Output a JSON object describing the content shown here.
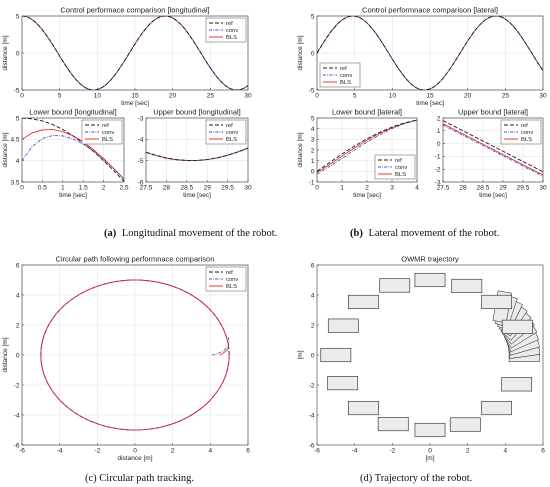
{
  "colors": {
    "ref": "#1a1a1a",
    "conv": "#4b4bd6",
    "bls": "#e8212b",
    "box_fill": "#ebebeb",
    "grid": "#dedede"
  },
  "legend_labels": [
    "ref",
    "conv",
    "BLS"
  ],
  "chart_data": [
    {
      "id": "a-top",
      "type": "line",
      "title": "Control performace comparison [longitudinal]",
      "xlabel": "time [sec]",
      "ylabel": "distance [m]",
      "xlim": [
        0,
        30
      ],
      "ylim": [
        -5,
        5
      ],
      "xticks": [
        0,
        5,
        10,
        15,
        20,
        25,
        30
      ],
      "yticks": [
        -5,
        0,
        5
      ],
      "grid": true,
      "legend": "top-right",
      "series": [
        {
          "name": "ref",
          "function": "5*cos(0.3307*t)",
          "range": [
            0,
            30
          ]
        },
        {
          "name": "conv",
          "function": "5*cos(0.3307*t)",
          "range": [
            0,
            30
          ]
        },
        {
          "name": "BLS",
          "function": "5*cos(0.3307*t)",
          "range": [
            0,
            30
          ]
        }
      ]
    },
    {
      "id": "a-low",
      "type": "line",
      "title": "Lower bound [longitudinal]",
      "xlabel": "time [sec]",
      "ylabel": "distance [m]",
      "xlim": [
        0,
        2.5
      ],
      "ylim": [
        3.5,
        5
      ],
      "xticks": [
        0,
        0.5,
        1,
        1.5,
        2,
        2.5
      ],
      "yticks": [
        3.5,
        4,
        4.5,
        5
      ],
      "grid": true,
      "legend": "top-right",
      "series": [
        {
          "name": "ref",
          "x": [
            0,
            0.25,
            0.5,
            0.75,
            1,
            1.25,
            1.5,
            1.75,
            2,
            2.25,
            2.5
          ],
          "y": [
            5,
            4.98,
            4.93,
            4.85,
            4.73,
            4.58,
            4.41,
            4.22,
            4.0,
            3.77,
            3.51
          ]
        },
        {
          "name": "conv",
          "x": [
            0,
            0.25,
            0.5,
            0.75,
            1,
            1.25,
            1.5,
            1.75,
            2,
            2.25,
            2.5
          ],
          "y": [
            4.0,
            4.33,
            4.52,
            4.59,
            4.58,
            4.51,
            4.39,
            4.23,
            4.03,
            3.81,
            3.56
          ]
        },
        {
          "name": "BLS",
          "x": [
            0,
            0.25,
            0.5,
            0.75,
            1,
            1.25,
            1.5,
            1.75,
            2,
            2.25,
            2.5
          ],
          "y": [
            4.5,
            4.65,
            4.72,
            4.73,
            4.68,
            4.58,
            4.44,
            4.26,
            4.05,
            3.82,
            3.57
          ]
        }
      ]
    },
    {
      "id": "a-up",
      "type": "line",
      "title": "Upper bound [longitudinal]",
      "xlabel": "time [sec]",
      "ylabel": "",
      "xlim": [
        27.5,
        30
      ],
      "ylim": [
        -6,
        -3
      ],
      "xticks": [
        27.5,
        28,
        28.5,
        29,
        29.5,
        30
      ],
      "yticks": [
        -6,
        -5,
        -4,
        -3
      ],
      "grid": true,
      "legend": "top-right",
      "series": [
        {
          "name": "ref",
          "x": [
            27.5,
            27.75,
            28,
            28.25,
            28.5,
            28.75,
            29,
            29.25,
            29.5,
            29.75,
            30
          ],
          "y": [
            -4.6,
            -4.75,
            -4.87,
            -4.95,
            -4.99,
            -4.99,
            -4.95,
            -4.87,
            -4.75,
            -4.6,
            -4.42
          ]
        },
        {
          "name": "conv",
          "x": [
            27.5,
            27.75,
            28,
            28.25,
            28.5,
            28.75,
            29,
            29.25,
            29.5,
            29.75,
            30
          ],
          "y": [
            -4.62,
            -4.77,
            -4.89,
            -4.96,
            -5.0,
            -4.99,
            -4.95,
            -4.86,
            -4.74,
            -4.58,
            -4.4
          ]
        },
        {
          "name": "BLS",
          "x": [
            27.5,
            27.75,
            28,
            28.25,
            28.5,
            28.75,
            29,
            29.25,
            29.5,
            29.75,
            30
          ],
          "y": [
            -4.61,
            -4.76,
            -4.88,
            -4.96,
            -4.99,
            -4.99,
            -4.95,
            -4.87,
            -4.75,
            -4.59,
            -4.41
          ]
        }
      ]
    },
    {
      "id": "b-top",
      "type": "line",
      "title": "Control performnace comparison [lateral]",
      "xlabel": "time [sec]",
      "ylabel": "distance [m]",
      "xlim": [
        0,
        30
      ],
      "ylim": [
        -5,
        5
      ],
      "xticks": [
        0,
        5,
        10,
        15,
        20,
        25,
        30
      ],
      "yticks": [
        -5,
        0,
        5
      ],
      "grid": true,
      "legend": "bottom-left",
      "series": [
        {
          "name": "ref",
          "function": "5*sin(0.3307*t)",
          "range": [
            0,
            30
          ]
        },
        {
          "name": "conv",
          "function": "5*sin(0.3307*t)",
          "range": [
            0,
            30
          ]
        },
        {
          "name": "BLS",
          "function": "5*sin(0.3307*t)",
          "range": [
            0,
            30
          ]
        }
      ]
    },
    {
      "id": "b-low",
      "type": "line",
      "title": "Lower bound [lateral]",
      "xlabel": "time [sec]",
      "ylabel": "distance [m]",
      "xlim": [
        0,
        4
      ],
      "ylim": [
        -1,
        5
      ],
      "xticks": [
        0,
        1,
        2,
        3,
        4
      ],
      "yticks": [
        -1,
        0,
        1,
        2,
        3,
        4,
        5
      ],
      "grid": true,
      "legend": "bottom-right",
      "series": [
        {
          "name": "ref",
          "x": [
            0,
            0.5,
            1,
            1.5,
            2,
            2.5,
            3,
            3.5,
            4
          ],
          "y": [
            0,
            0.82,
            1.62,
            2.37,
            3.05,
            3.65,
            4.15,
            4.54,
            4.81
          ]
        },
        {
          "name": "conv",
          "x": [
            0,
            0.5,
            1,
            1.5,
            2,
            2.5,
            3,
            3.5,
            4
          ],
          "y": [
            -0.25,
            0.45,
            1.22,
            2.0,
            2.75,
            3.42,
            4.0,
            4.47,
            4.79
          ]
        },
        {
          "name": "BLS",
          "x": [
            0,
            0.5,
            1,
            1.5,
            2,
            2.5,
            3,
            3.5,
            4
          ],
          "y": [
            -0.1,
            0.63,
            1.43,
            2.2,
            2.92,
            3.55,
            4.08,
            4.5,
            4.8
          ]
        }
      ]
    },
    {
      "id": "b-up",
      "type": "line",
      "title": "Upper bound [lateral]",
      "xlabel": "time [sec]",
      "ylabel": "",
      "xlim": [
        27.5,
        30
      ],
      "ylim": [
        -3,
        2
      ],
      "xticks": [
        27.5,
        28,
        28.5,
        29,
        29.5,
        30
      ],
      "yticks": [
        -3,
        -2,
        -1,
        0,
        1,
        2
      ],
      "grid": true,
      "legend": "top-right",
      "series": [
        {
          "name": "ref",
          "x": [
            27.5,
            28,
            28.5,
            29,
            29.5,
            30
          ],
          "y": [
            1.8,
            1.0,
            0.2,
            -0.6,
            -1.4,
            -2.2
          ]
        },
        {
          "name": "conv",
          "x": [
            27.5,
            28,
            28.5,
            29,
            29.5,
            30
          ],
          "y": [
            1.45,
            0.65,
            -0.15,
            -0.95,
            -1.75,
            -2.55
          ]
        },
        {
          "name": "BLS",
          "x": [
            27.5,
            28,
            28.5,
            29,
            29.5,
            30
          ],
          "y": [
            1.55,
            0.75,
            -0.05,
            -0.85,
            -1.65,
            -2.45
          ]
        }
      ]
    },
    {
      "id": "c",
      "type": "line",
      "title": "Circular path following performnace comparison",
      "xlabel": "distance [m]",
      "ylabel": "distance [m]",
      "xlim": [
        -6,
        6
      ],
      "ylim": [
        -6,
        6
      ],
      "xticks": [
        -6,
        -4,
        -2,
        0,
        2,
        4,
        6
      ],
      "yticks": [
        -6,
        -4,
        -2,
        0,
        2,
        4,
        6
      ],
      "grid": true,
      "legend": "top-right",
      "series": [
        {
          "name": "ref",
          "parametric": "circle",
          "radius": 5,
          "center": [
            0,
            0
          ]
        },
        {
          "name": "conv",
          "parametric": "circle",
          "radius": 5,
          "center": [
            0,
            0
          ],
          "start": [
            4.1,
            0
          ],
          "transient_end": [
            4.95,
            1.2
          ]
        },
        {
          "name": "BLS",
          "parametric": "circle",
          "radius": 5,
          "center": [
            0,
            0
          ],
          "start": [
            4.5,
            0
          ],
          "transient_end": [
            4.98,
            0.6
          ]
        }
      ]
    },
    {
      "id": "d",
      "type": "scatter",
      "title": "OWMR trajectory",
      "xlabel": "[m]",
      "ylabel": "[m]",
      "xlim": [
        -6,
        6
      ],
      "ylim": [
        -6,
        6
      ],
      "xticks": [
        -6,
        -4,
        -2,
        0,
        2,
        4,
        6
      ],
      "yticks": [
        -6,
        -4,
        -2,
        0,
        2,
        4,
        6
      ],
      "grid": false,
      "legend": "none",
      "robot_poses_on_circle_radius": 5,
      "robot_pose_angles_deg": [
        90,
        112,
        135,
        157,
        180,
        202,
        225,
        247,
        270,
        292,
        315,
        337,
        22,
        45,
        67
      ],
      "start_cluster_angles_deg": [
        0,
        4,
        8,
        12,
        16,
        20,
        24,
        28,
        32,
        36,
        40
      ],
      "robot_size": [
        1.6,
        0.9
      ]
    }
  ],
  "captions": [
    {
      "label": "(a)",
      "text": "Longitudinal movement of the robot."
    },
    {
      "label": "(b)",
      "text": "Lateral movement of the robot."
    },
    {
      "label": "",
      "text": "(c) Circular path tracking."
    },
    {
      "label": "",
      "text": "(d) Trajectory of the robot."
    }
  ]
}
